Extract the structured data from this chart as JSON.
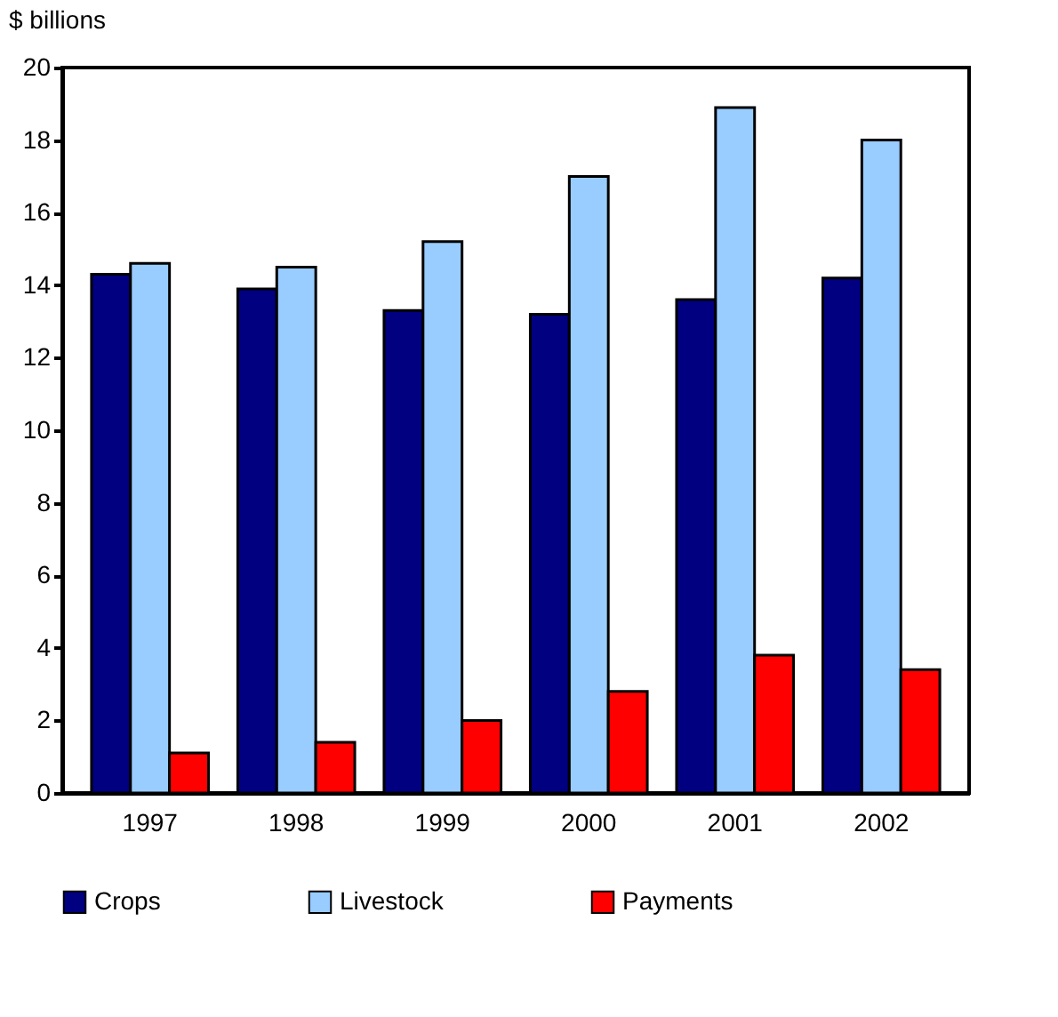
{
  "chart_data": {
    "type": "bar",
    "ylabel": "$ billions",
    "categories": [
      "1997",
      "1998",
      "1999",
      "2000",
      "2001",
      "2002"
    ],
    "series": [
      {
        "name": "Crops",
        "color": "#000080",
        "values": [
          14.3,
          13.9,
          13.3,
          13.2,
          13.6,
          14.2
        ]
      },
      {
        "name": "Livestock",
        "color": "#99ccff",
        "values": [
          14.6,
          14.5,
          15.2,
          17.0,
          18.9,
          18.0
        ]
      },
      {
        "name": "Payments",
        "color": "#ff0000",
        "values": [
          1.1,
          1.4,
          2.0,
          2.8,
          3.8,
          3.4
        ]
      }
    ],
    "ylim": [
      0,
      20
    ],
    "yticks": [
      0,
      2,
      4,
      6,
      8,
      10,
      12,
      14,
      16,
      18,
      20
    ],
    "grid": false,
    "legend": "bottom"
  }
}
